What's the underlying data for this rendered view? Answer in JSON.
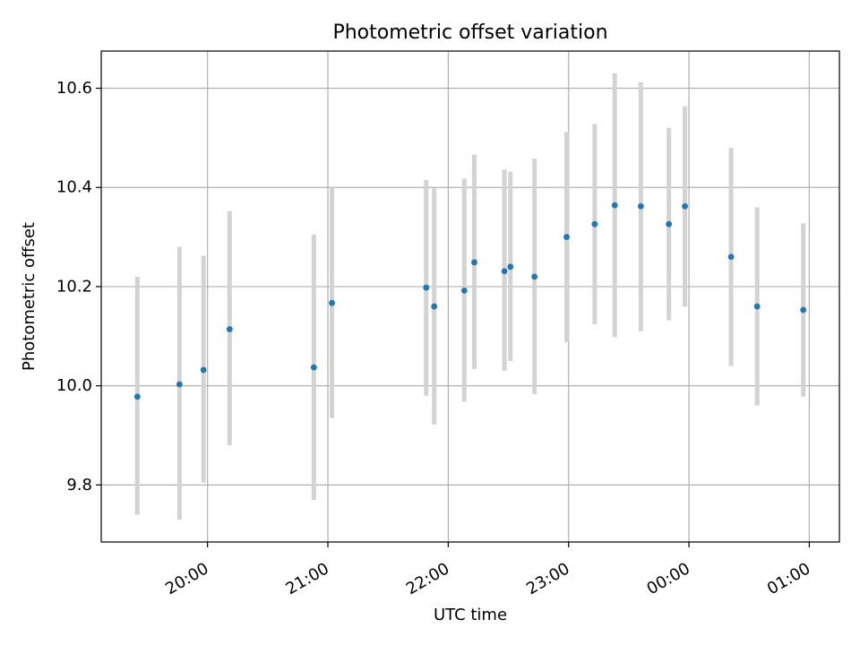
{
  "chart_data": {
    "type": "scatter",
    "title": "Photometric offset variation",
    "xlabel": "UTC time",
    "ylabel": "Photometric offset",
    "x_ticks": [
      "20:00",
      "21:00",
      "22:00",
      "23:00",
      "00:00",
      "01:00"
    ],
    "y_ticks": [
      "9.8",
      "10.0",
      "10.2",
      "10.4",
      "10.6"
    ],
    "xlim": [
      "19:07",
      "01:15"
    ],
    "ylim": [
      9.685,
      10.675
    ],
    "grid": true,
    "marker_color": "#1f77b4",
    "errorbar_color": "#d3d3d3",
    "series": [
      {
        "points": [
          {
            "x": "19:25",
            "y": 9.978,
            "low": 9.74,
            "high": 10.22
          },
          {
            "x": "19:46",
            "y": 10.003,
            "low": 9.73,
            "high": 10.28
          },
          {
            "x": "19:58",
            "y": 10.032,
            "low": 9.805,
            "high": 10.262
          },
          {
            "x": "20:11",
            "y": 10.114,
            "low": 9.88,
            "high": 10.352
          },
          {
            "x": "20:53",
            "y": 10.037,
            "low": 9.77,
            "high": 10.305
          },
          {
            "x": "21:02",
            "y": 10.167,
            "low": 9.935,
            "high": 10.4
          },
          {
            "x": "21:49",
            "y": 10.198,
            "low": 9.98,
            "high": 10.415
          },
          {
            "x": "21:53",
            "y": 10.16,
            "low": 9.922,
            "high": 10.398
          },
          {
            "x": "22:08",
            "y": 10.192,
            "low": 9.968,
            "high": 10.418
          },
          {
            "x": "22:13",
            "y": 10.249,
            "low": 10.034,
            "high": 10.466
          },
          {
            "x": "22:28",
            "y": 10.231,
            "low": 10.03,
            "high": 10.436
          },
          {
            "x": "22:31",
            "y": 10.24,
            "low": 10.05,
            "high": 10.432
          },
          {
            "x": "22:43",
            "y": 10.22,
            "low": 9.983,
            "high": 10.458
          },
          {
            "x": "22:59",
            "y": 10.3,
            "low": 10.088,
            "high": 10.512
          },
          {
            "x": "23:13",
            "y": 10.326,
            "low": 10.124,
            "high": 10.528
          },
          {
            "x": "23:23",
            "y": 10.364,
            "low": 10.098,
            "high": 10.63
          },
          {
            "x": "23:36",
            "y": 10.362,
            "low": 10.11,
            "high": 10.612
          },
          {
            "x": "23:50",
            "y": 10.326,
            "low": 10.132,
            "high": 10.52
          },
          {
            "x": "23:58",
            "y": 10.362,
            "low": 10.16,
            "high": 10.564
          },
          {
            "x": "00:21",
            "y": 10.26,
            "low": 10.04,
            "high": 10.48
          },
          {
            "x": "00:34",
            "y": 10.16,
            "low": 9.96,
            "high": 10.36
          },
          {
            "x": "00:57",
            "y": 10.153,
            "low": 9.978,
            "high": 10.328
          }
        ]
      }
    ]
  }
}
